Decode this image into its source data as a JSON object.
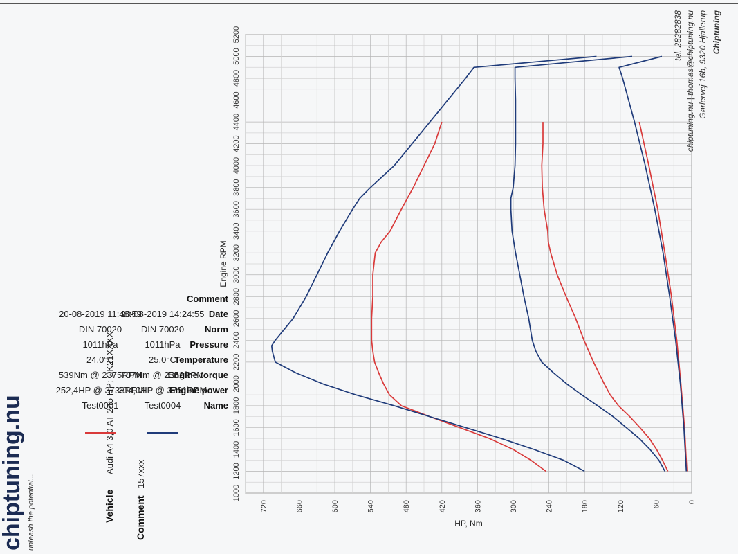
{
  "company": {
    "name": "Chiptuning",
    "address": "Gørlervej 16b, 9320 Hjallerup",
    "contact": "chiptuning.nu | thomas@chiptuning.nu",
    "phone": "tel. 28282838"
  },
  "brand": {
    "logo_text": "chiptuning.nu",
    "tagline": "unleash the potential..."
  },
  "vehicle": {
    "label": "Vehicle",
    "value": "Audi A4 3,0 AT 245 HP; CK21XXXX"
  },
  "comment": {
    "label": "Comment",
    "value": "157xxx"
  },
  "summary": {
    "row_labels": [
      "Name",
      "Engine power",
      "Engine torque",
      "Temperature",
      "Pressure",
      "Norm",
      "Date",
      "Comment"
    ],
    "runs": [
      {
        "name": "Test0001",
        "color": "#d93a3a",
        "power": "252,4HP @ 3733RPM",
        "torque": "539Nm @ 2375RPM",
        "temperature": "24,0°C",
        "pressure": "1011hPa",
        "norm": "DIN 70020",
        "date": "20-08-2019 11:48:59"
      },
      {
        "name": "Test0004",
        "color": "#1f3b7a",
        "power": "304,0HP @ 3731RPM",
        "torque": "707Nm @ 2352RPM",
        "temperature": "25,0°C",
        "pressure": "1011hPa",
        "norm": "DIN 70020",
        "date": "20-08-2019 14:24:55"
      }
    ]
  },
  "chart_data": {
    "type": "line",
    "xlabel": "Engine RPM",
    "ylabel": "HP, Nm",
    "xlim": [
      1000,
      5200
    ],
    "ylim": [
      0,
      750
    ],
    "x_ticks": [
      1000,
      1200,
      1400,
      1600,
      1800,
      2000,
      2200,
      2400,
      2600,
      2800,
      3000,
      3200,
      3400,
      3600,
      3800,
      4000,
      4200,
      4400,
      4600,
      4800,
      5000,
      5200
    ],
    "y_ticks": [
      0,
      60,
      120,
      180,
      240,
      300,
      360,
      420,
      480,
      540,
      600,
      660,
      720
    ],
    "grid": true,
    "series": [
      {
        "name": "Test0001",
        "quantity": "torque",
        "color": "#d93a3a",
        "x": [
          1200,
          1300,
          1400,
          1500,
          1600,
          1700,
          1800,
          1900,
          2000,
          2100,
          2200,
          2300,
          2400,
          2600,
          2800,
          3000,
          3200,
          3300,
          3400,
          3600,
          3800,
          4000,
          4200,
          4400
        ],
        "y": [
          245,
          270,
          300,
          340,
          390,
          440,
          488,
          508,
          518,
          526,
          533,
          536,
          538,
          538,
          536,
          536,
          532,
          522,
          507,
          488,
          468,
          450,
          432,
          420
        ]
      },
      {
        "name": "Test0001",
        "quantity": "power",
        "color": "#d93a3a",
        "x": [
          1200,
          1300,
          1400,
          1500,
          1600,
          1700,
          1800,
          1900,
          2000,
          2100,
          2200,
          2300,
          2400,
          2600,
          2800,
          3000,
          3200,
          3300,
          3400,
          3500,
          3600,
          3800,
          4000,
          4200,
          4400
        ],
        "y": [
          40,
          49,
          59,
          71,
          87,
          104,
          123,
          137,
          147,
          156,
          165,
          173,
          181,
          195,
          211,
          226,
          237,
          241,
          242,
          245,
          248,
          251,
          252,
          250,
          250
        ]
      },
      {
        "name": "Test0001",
        "quantity": "loss",
        "color": "#d93a3a",
        "x": [
          1200,
          1600,
          2000,
          2400,
          2800,
          3200,
          3600,
          4000,
          4400
        ],
        "y": [
          8,
          12,
          18,
          25,
          34,
          45,
          57,
          72,
          88
        ]
      },
      {
        "name": "Test0004",
        "quantity": "torque",
        "color": "#1f3b7a",
        "x": [
          1200,
          1300,
          1400,
          1500,
          1600,
          1700,
          1800,
          1900,
          2000,
          2100,
          2200,
          2300,
          2350,
          2400,
          2500,
          2600,
          2800,
          3000,
          3200,
          3400,
          3600,
          3700,
          3800,
          4000,
          4200,
          4400,
          4600,
          4800,
          4900,
          5000
        ],
        "y": [
          180,
          215,
          265,
          320,
          380,
          440,
          500,
          565,
          620,
          665,
          700,
          705,
          706,
          700,
          685,
          670,
          648,
          630,
          612,
          592,
          570,
          558,
          540,
          500,
          470,
          440,
          410,
          380,
          366,
          160
        ]
      },
      {
        "name": "Test0004",
        "quantity": "power",
        "color": "#1f3b7a",
        "x": [
          1200,
          1300,
          1400,
          1500,
          1600,
          1700,
          1800,
          1900,
          2000,
          2100,
          2200,
          2300,
          2400,
          2600,
          2800,
          3000,
          3200,
          3400,
          3600,
          3700,
          3800,
          4000,
          4200,
          4400,
          4600,
          4800,
          4900,
          5000
        ],
        "y": [
          45,
          55,
          70,
          88,
          110,
          132,
          158,
          185,
          210,
          232,
          252,
          262,
          268,
          274,
          282,
          289,
          296,
          302,
          304,
          304,
          300,
          297,
          296,
          296,
          296,
          297,
          297,
          100
        ]
      },
      {
        "name": "Test0004",
        "quantity": "loss",
        "color": "#1f3b7a",
        "x": [
          1200,
          1600,
          2000,
          2400,
          2800,
          3200,
          3600,
          4000,
          4400,
          4800,
          4900,
          5000
        ],
        "y": [
          9,
          13,
          19,
          27,
          37,
          48,
          62,
          78,
          96,
          116,
          122,
          50
        ]
      }
    ]
  }
}
